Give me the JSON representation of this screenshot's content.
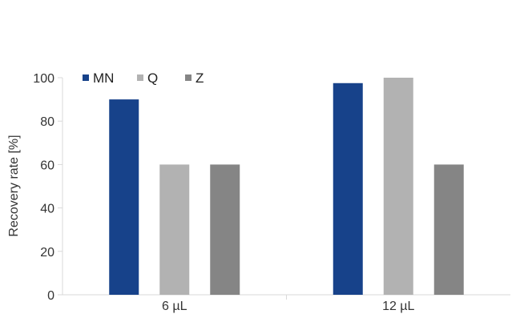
{
  "chart_data": {
    "type": "bar",
    "categories": [
      "6 µL",
      "12 µL"
    ],
    "series": [
      {
        "name": "MN",
        "values": [
          90,
          97.5
        ],
        "color": "#17428a"
      },
      {
        "name": "Q",
        "values": [
          60,
          100
        ],
        "color": "#b2b2b2"
      },
      {
        "name": "Z",
        "values": [
          60,
          60
        ],
        "color": "#858585"
      }
    ],
    "ylabel": "Recovery rate [%]",
    "xlabel": "",
    "ylim": [
      0,
      100
    ],
    "yticks": [
      0,
      20,
      40,
      60,
      80,
      100
    ],
    "grid": false,
    "legend_position": "top-left"
  }
}
